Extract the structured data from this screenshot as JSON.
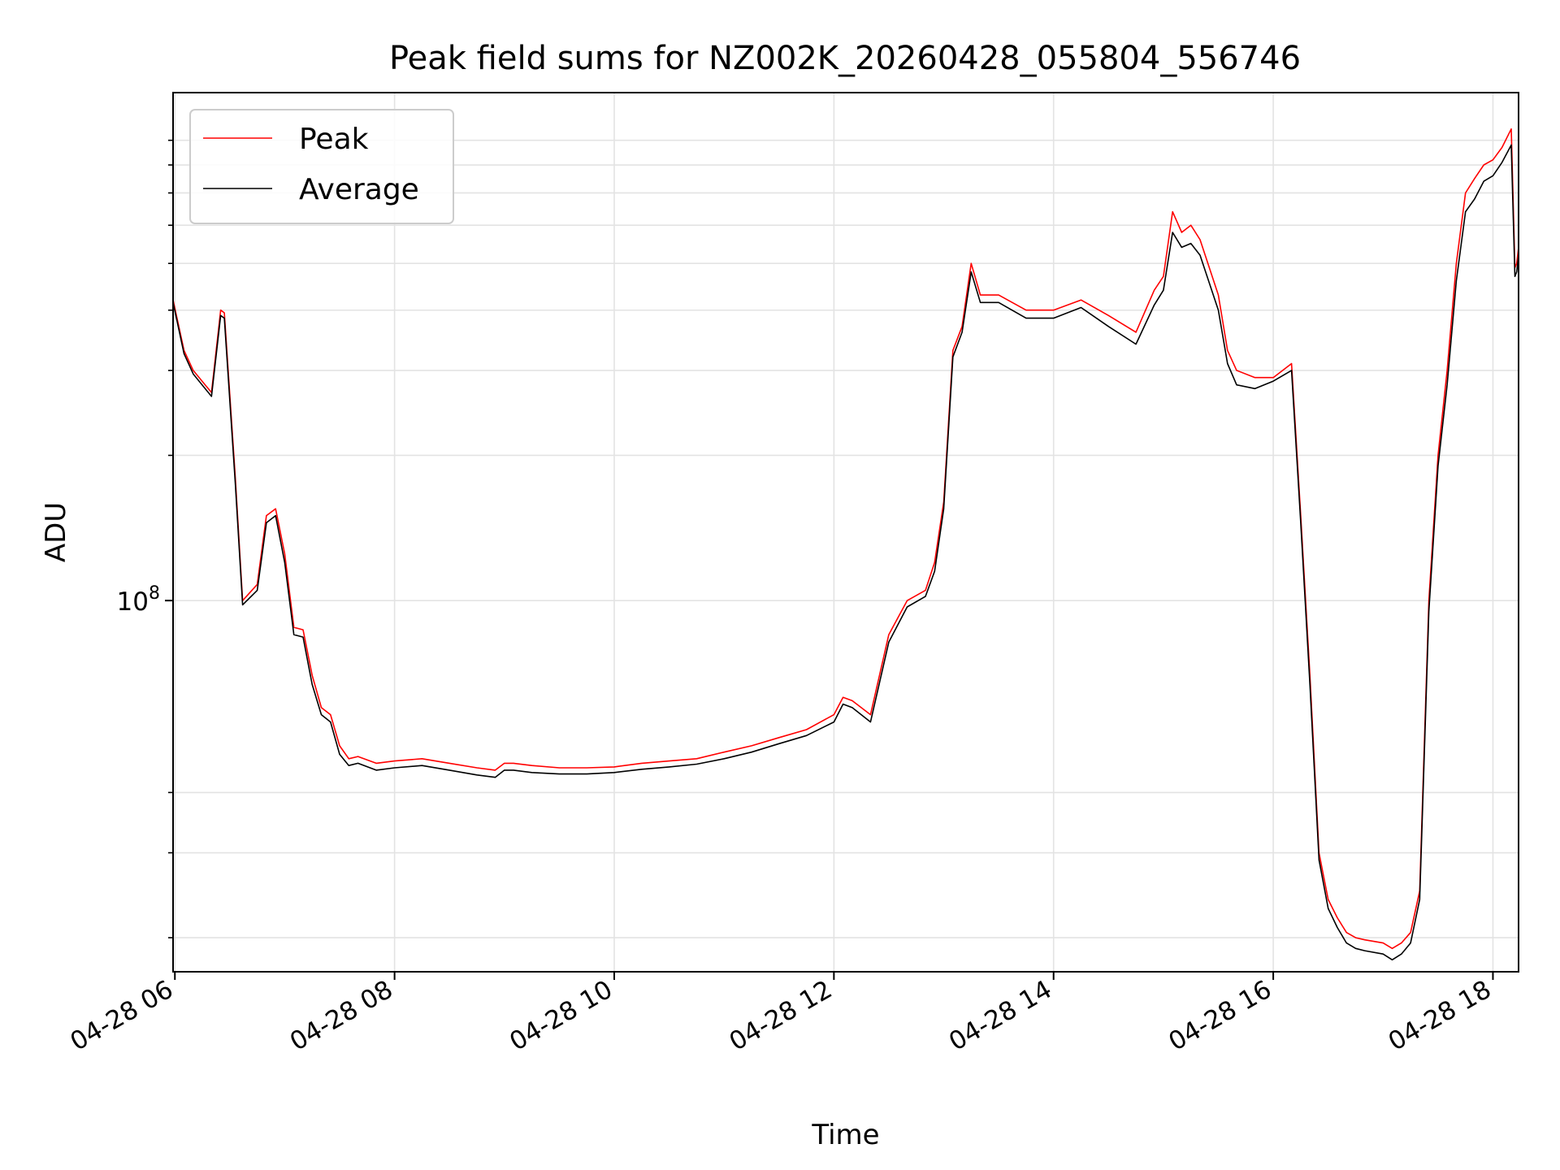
{
  "chart_data": {
    "type": "line",
    "title": "Peak field sums for NZ002K_20260428_055804_556746",
    "xlabel": "Time",
    "ylabel": "ADU",
    "yscale": "log",
    "xlim": [
      "04-28 05:59",
      "04-28 18:14"
    ],
    "ylim": [
      17000000,
      1130000000
    ],
    "grid": true,
    "legend_position": "top-left",
    "x_ticks": [
      "04-28 06",
      "04-28 08",
      "04-28 10",
      "04-28 12",
      "04-28 14",
      "04-28 16",
      "04-28 18"
    ],
    "y_ticks": [
      {
        "label_base": "10",
        "label_exp": "8",
        "value": 100000000
      }
    ],
    "series": [
      {
        "name": "Peak",
        "color": "#ff0000",
        "x": [
          "05:59",
          "06:05",
          "06:10",
          "06:20",
          "06:25",
          "06:27",
          "06:33",
          "06:37",
          "06:45",
          "06:50",
          "06:55",
          "07:00",
          "07:05",
          "07:10",
          "07:15",
          "07:20",
          "07:25",
          "07:30",
          "07:35",
          "07:40",
          "07:50",
          "08:00",
          "08:15",
          "08:30",
          "08:45",
          "08:55",
          "09:00",
          "09:05",
          "09:15",
          "09:30",
          "09:45",
          "10:00",
          "10:15",
          "10:30",
          "10:45",
          "11:00",
          "11:15",
          "11:30",
          "11:45",
          "12:00",
          "12:05",
          "12:10",
          "12:20",
          "12:30",
          "12:40",
          "12:50",
          "12:55",
          "13:00",
          "13:05",
          "13:10",
          "13:15",
          "13:20",
          "13:30",
          "13:45",
          "14:00",
          "14:15",
          "14:30",
          "14:45",
          "14:55",
          "15:00",
          "15:05",
          "15:10",
          "15:15",
          "15:20",
          "15:30",
          "15:35",
          "15:40",
          "15:50",
          "16:00",
          "16:10",
          "16:15",
          "16:20",
          "16:25",
          "16:30",
          "16:35",
          "16:40",
          "16:45",
          "16:50",
          "17:00",
          "17:05",
          "17:10",
          "17:15",
          "17:20",
          "17:25",
          "17:30",
          "17:35",
          "17:40",
          "17:45",
          "17:50",
          "17:55",
          "18:00",
          "18:05",
          "18:10",
          "18:12",
          "18:13",
          "18:14"
        ],
        "y": [
          420000000,
          330000000,
          300000000,
          270000000,
          400000000,
          395000000,
          180000000,
          100000000,
          108000000,
          150000000,
          155000000,
          125000000,
          88000000,
          87000000,
          70000000,
          60000000,
          58000000,
          50000000,
          47000000,
          47500000,
          46000000,
          46500000,
          47000000,
          46000000,
          45000000,
          44500000,
          46000000,
          46000000,
          45500000,
          45000000,
          45000000,
          45200000,
          46000000,
          46500000,
          47000000,
          48500000,
          50000000,
          52000000,
          54000000,
          58000000,
          63000000,
          62000000,
          58000000,
          85000000,
          100000000,
          105000000,
          120000000,
          160000000,
          330000000,
          370000000,
          500000000,
          430000000,
          430000000,
          400000000,
          400000000,
          420000000,
          390000000,
          360000000,
          440000000,
          470000000,
          640000000,
          580000000,
          600000000,
          560000000,
          430000000,
          330000000,
          300000000,
          290000000,
          290000000,
          310000000,
          150000000,
          70000000,
          30000000,
          24000000,
          22000000,
          20500000,
          20000000,
          19800000,
          19500000,
          19000000,
          19500000,
          20500000,
          25000000,
          100000000,
          200000000,
          300000000,
          500000000,
          700000000,
          750000000,
          800000000,
          820000000,
          870000000,
          950000000,
          490000000,
          500000000,
          540000000
        ]
      },
      {
        "name": "Average",
        "color": "#000000",
        "x": [
          "05:59",
          "06:05",
          "06:10",
          "06:20",
          "06:25",
          "06:27",
          "06:33",
          "06:37",
          "06:45",
          "06:50",
          "06:55",
          "07:00",
          "07:05",
          "07:10",
          "07:15",
          "07:20",
          "07:25",
          "07:30",
          "07:35",
          "07:40",
          "07:50",
          "08:00",
          "08:15",
          "08:30",
          "08:45",
          "08:55",
          "09:00",
          "09:05",
          "09:15",
          "09:30",
          "09:45",
          "10:00",
          "10:15",
          "10:30",
          "10:45",
          "11:00",
          "11:15",
          "11:30",
          "11:45",
          "12:00",
          "12:05",
          "12:10",
          "12:20",
          "12:30",
          "12:40",
          "12:50",
          "12:55",
          "13:00",
          "13:05",
          "13:10",
          "13:15",
          "13:20",
          "13:30",
          "13:45",
          "14:00",
          "14:15",
          "14:30",
          "14:45",
          "14:55",
          "15:00",
          "15:05",
          "15:10",
          "15:15",
          "15:20",
          "15:30",
          "15:35",
          "15:40",
          "15:50",
          "16:00",
          "16:10",
          "16:15",
          "16:20",
          "16:25",
          "16:30",
          "16:35",
          "16:40",
          "16:45",
          "16:50",
          "17:00",
          "17:05",
          "17:10",
          "17:15",
          "17:20",
          "17:25",
          "17:30",
          "17:35",
          "17:40",
          "17:45",
          "17:50",
          "17:55",
          "18:00",
          "18:05",
          "18:10",
          "18:12",
          "18:13",
          "18:14"
        ],
        "y": [
          415000000,
          325000000,
          295000000,
          265000000,
          390000000,
          385000000,
          175000000,
          98000000,
          105000000,
          145000000,
          150000000,
          120000000,
          85000000,
          84000000,
          67000000,
          58000000,
          56000000,
          48000000,
          45500000,
          46000000,
          44500000,
          45000000,
          45500000,
          44500000,
          43500000,
          43000000,
          44500000,
          44500000,
          44000000,
          43700000,
          43700000,
          44000000,
          44700000,
          45200000,
          45800000,
          47000000,
          48500000,
          50500000,
          52500000,
          56000000,
          61000000,
          60000000,
          56000000,
          82000000,
          97000000,
          102000000,
          115000000,
          155000000,
          320000000,
          360000000,
          480000000,
          415000000,
          415000000,
          385000000,
          385000000,
          405000000,
          370000000,
          340000000,
          410000000,
          440000000,
          580000000,
          540000000,
          550000000,
          520000000,
          400000000,
          310000000,
          280000000,
          275000000,
          285000000,
          300000000,
          145000000,
          67000000,
          29000000,
          23000000,
          21000000,
          19500000,
          19000000,
          18800000,
          18500000,
          18000000,
          18500000,
          19500000,
          24000000,
          95000000,
          190000000,
          280000000,
          460000000,
          640000000,
          680000000,
          740000000,
          760000000,
          810000000,
          880000000,
          470000000,
          480000000,
          520000000
        ]
      }
    ]
  }
}
